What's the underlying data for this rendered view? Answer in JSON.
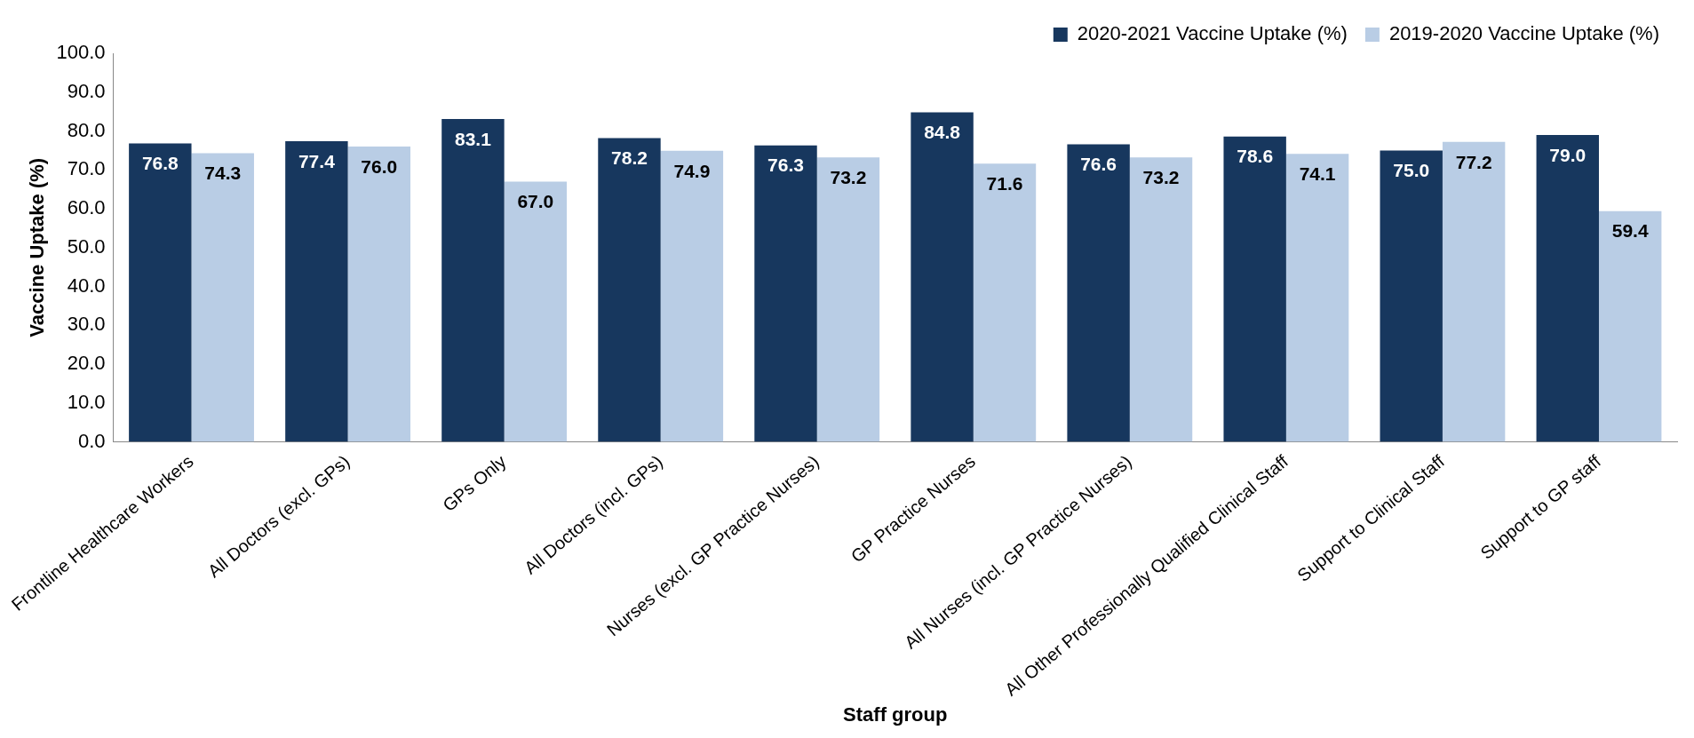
{
  "chart_data": {
    "type": "bar",
    "xlabel": "Staff group",
    "ylabel": "Vaccine Uptake (%)",
    "categories": [
      "Frontline Healthcare Workers",
      "All Doctors (excl. GPs)",
      "GPs Only",
      "All Doctors (incl. GPs)",
      "Nurses (excl. GP Practice Nurses)",
      "GP Practice Nurses",
      "All Nurses (incl. GP Practice Nurses)",
      "All Other Professionally Qualified Clinical Staff",
      "Support to Clinical Staff",
      "Support to GP staff"
    ],
    "series": [
      {
        "name": "2020-2021 Vaccine Uptake (%)",
        "color": "#17375e",
        "values": [
          76.8,
          77.4,
          83.1,
          78.2,
          76.3,
          84.8,
          76.6,
          78.6,
          75.0,
          79.0
        ],
        "value_labels": [
          "76.8",
          "77.4",
          "83.1",
          "78.2",
          "76.3",
          "84.8",
          "76.6",
          "78.6",
          "75.0",
          "79.0"
        ]
      },
      {
        "name": "2019-2020 Vaccine Uptake (%)",
        "color": "#b9cde5",
        "values": [
          74.3,
          76.0,
          67.0,
          74.9,
          73.2,
          71.6,
          73.2,
          74.1,
          77.2,
          59.4
        ],
        "value_labels": [
          "74.3",
          "76.0",
          "67.0",
          "74.9",
          "73.2",
          "71.6",
          "73.2",
          "74.1",
          "77.2",
          "59.4"
        ]
      }
    ],
    "ylim": [
      0,
      100
    ],
    "yticks": [
      {
        "value": 0,
        "label": "0.0"
      },
      {
        "value": 10,
        "label": "10.0"
      },
      {
        "value": 20,
        "label": "20.0"
      },
      {
        "value": 30,
        "label": "30.0"
      },
      {
        "value": 40,
        "label": "40.0"
      },
      {
        "value": 50,
        "label": "50.0"
      },
      {
        "value": 60,
        "label": "60.0"
      },
      {
        "value": 70,
        "label": "70.0"
      },
      {
        "value": 80,
        "label": "80.0"
      },
      {
        "value": 90,
        "label": "90.0"
      },
      {
        "value": 100,
        "label": "100.0"
      }
    ],
    "grid": false,
    "legend": "top right"
  }
}
